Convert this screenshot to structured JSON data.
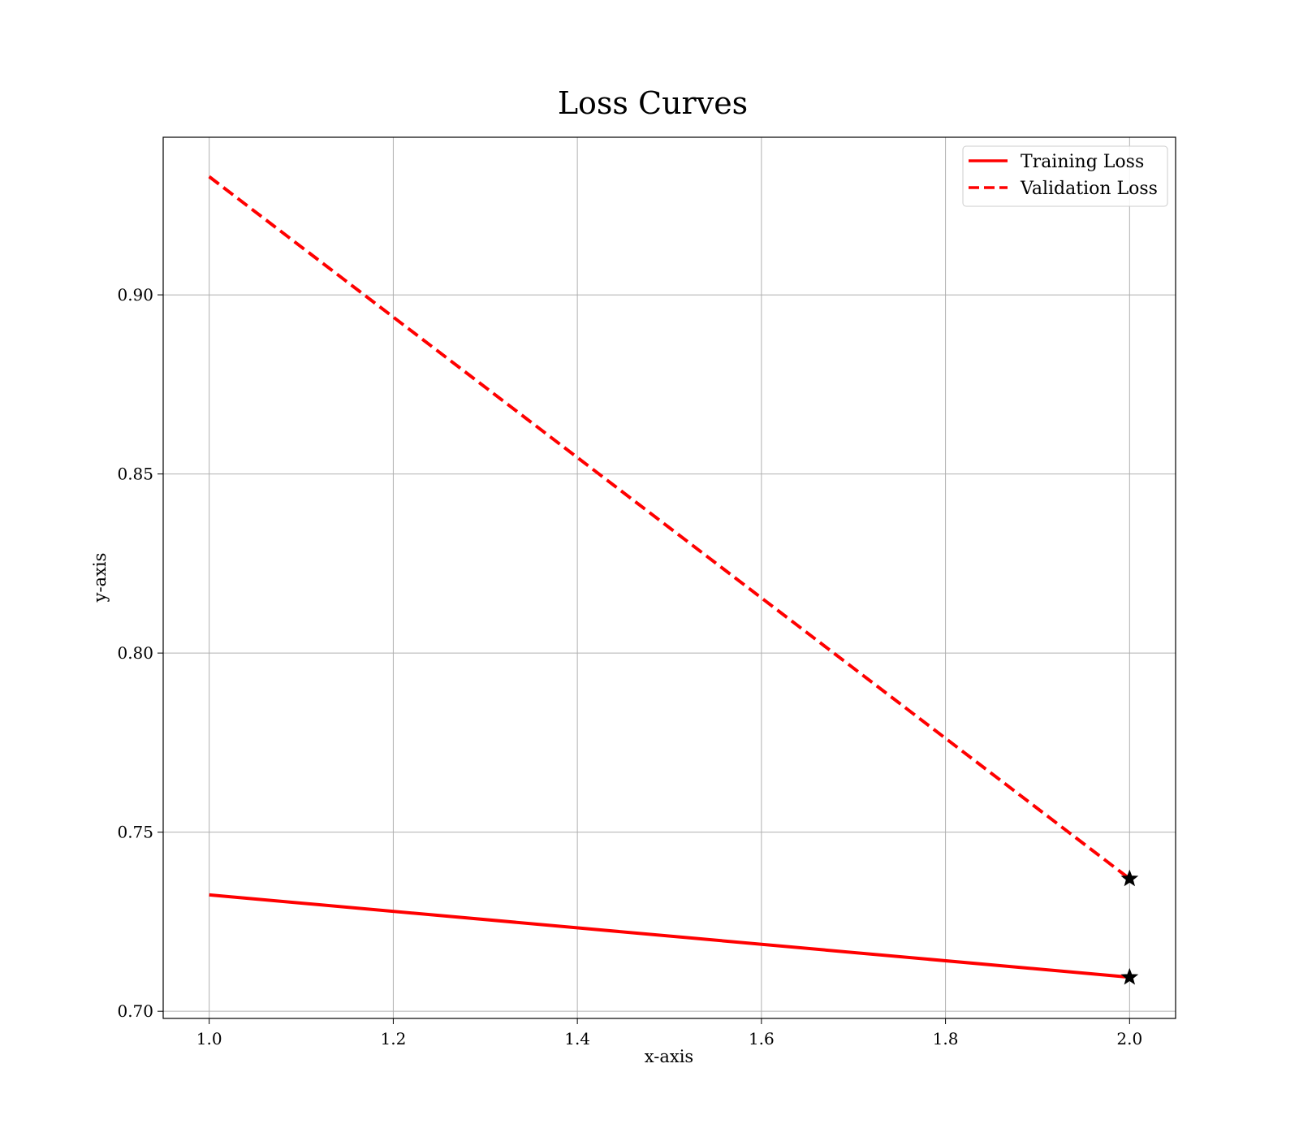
{
  "chart_data": {
    "type": "line",
    "title": "Loss Curves",
    "xlabel": "x-axis",
    "ylabel": "y-axis",
    "xlim": [
      0.95,
      2.05
    ],
    "ylim": [
      0.698,
      0.944
    ],
    "xticks": [
      1.0,
      1.2,
      1.4,
      1.6,
      1.8,
      2.0
    ],
    "xtick_labels": [
      "1.0",
      "1.2",
      "1.4",
      "1.6",
      "1.8",
      "2.0"
    ],
    "yticks": [
      0.7,
      0.75,
      0.8,
      0.85,
      0.9
    ],
    "ytick_labels": [
      "0.70",
      "0.75",
      "0.80",
      "0.85",
      "0.90"
    ],
    "grid": true,
    "legend_position": "top-right",
    "series": [
      {
        "name": "Training Loss",
        "x": [
          1.0,
          2.0
        ],
        "values": [
          0.7325,
          0.7095
        ],
        "color": "#ff0000",
        "line_style": "solid",
        "marker_on_last_point": "star"
      },
      {
        "name": "Validation Loss",
        "x": [
          1.0,
          2.0
        ],
        "values": [
          0.933,
          0.737
        ],
        "color": "#ff0000",
        "line_style": "dashed",
        "marker_on_last_point": "star"
      }
    ],
    "marker_color": "#000000"
  }
}
